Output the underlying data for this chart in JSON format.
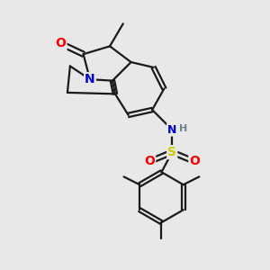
{
  "background_color": "#e8e8e8",
  "bond_color": "#1a1a1a",
  "bond_width": 1.6,
  "atom_colors": {
    "O": "#ff0000",
    "N": "#0000cc",
    "S": "#cccc00",
    "H": "#708090",
    "C": "#1a1a1a"
  },
  "figsize": [
    3.0,
    3.0
  ],
  "dpi": 100
}
